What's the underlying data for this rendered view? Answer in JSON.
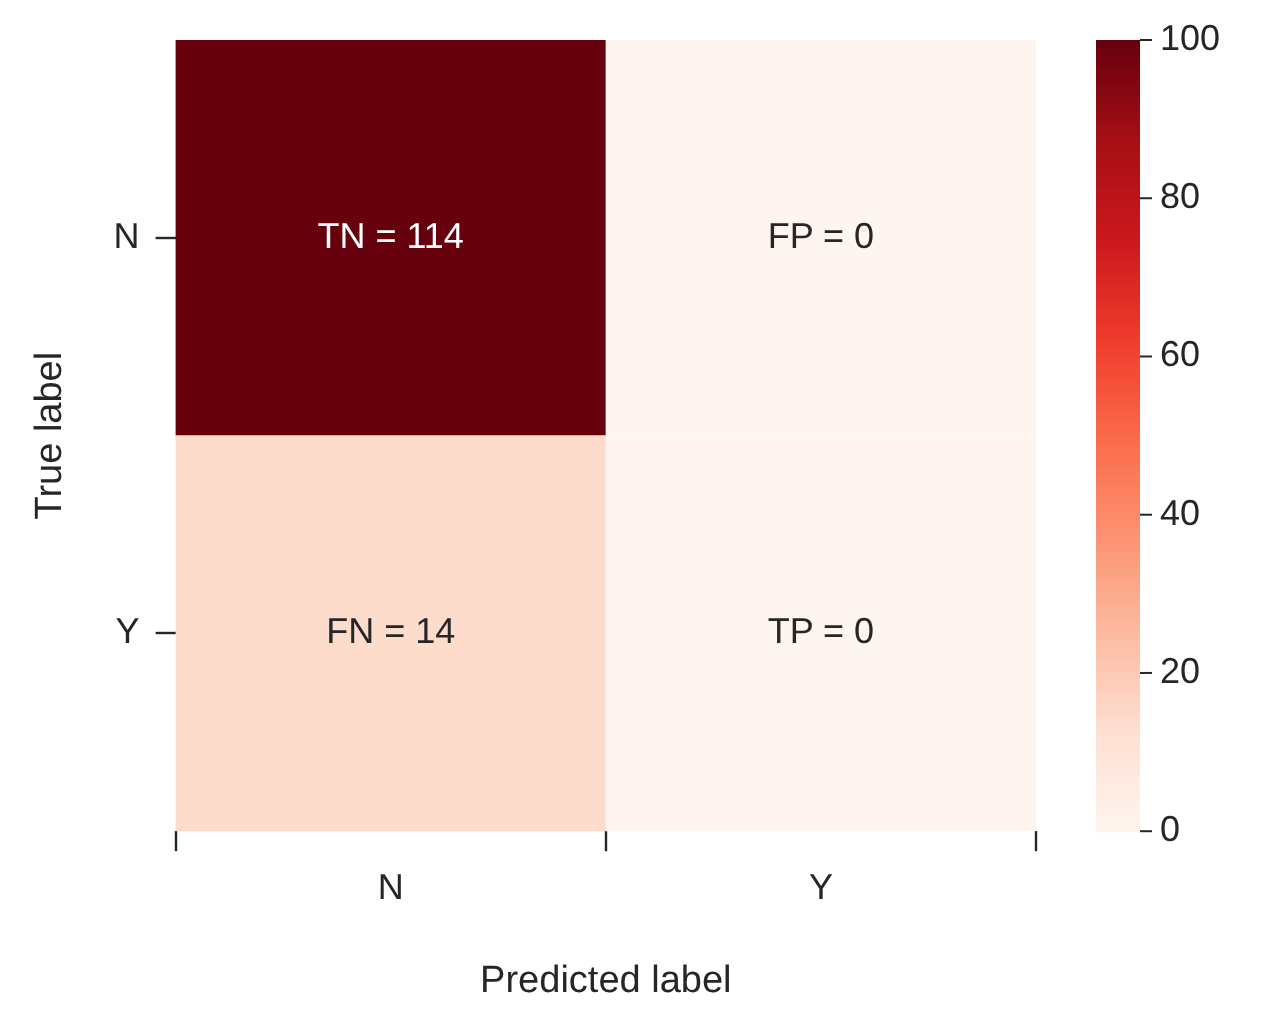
{
  "chart_data": {
    "type": "heatmap",
    "xlabel": "Predicted label",
    "ylabel": "True label",
    "categories": [
      "N",
      "Y"
    ],
    "y_categories": [
      "N",
      "Y"
    ],
    "cells": [
      [
        114,
        0
      ],
      [
        14,
        0
      ]
    ],
    "cell_labels": [
      [
        "TN = 114",
        "FP = 0"
      ],
      [
        "FN = 14",
        "TP = 0"
      ]
    ],
    "clim": [
      0,
      100
    ],
    "cticks": [
      0,
      20,
      40,
      60,
      80,
      100
    ]
  }
}
